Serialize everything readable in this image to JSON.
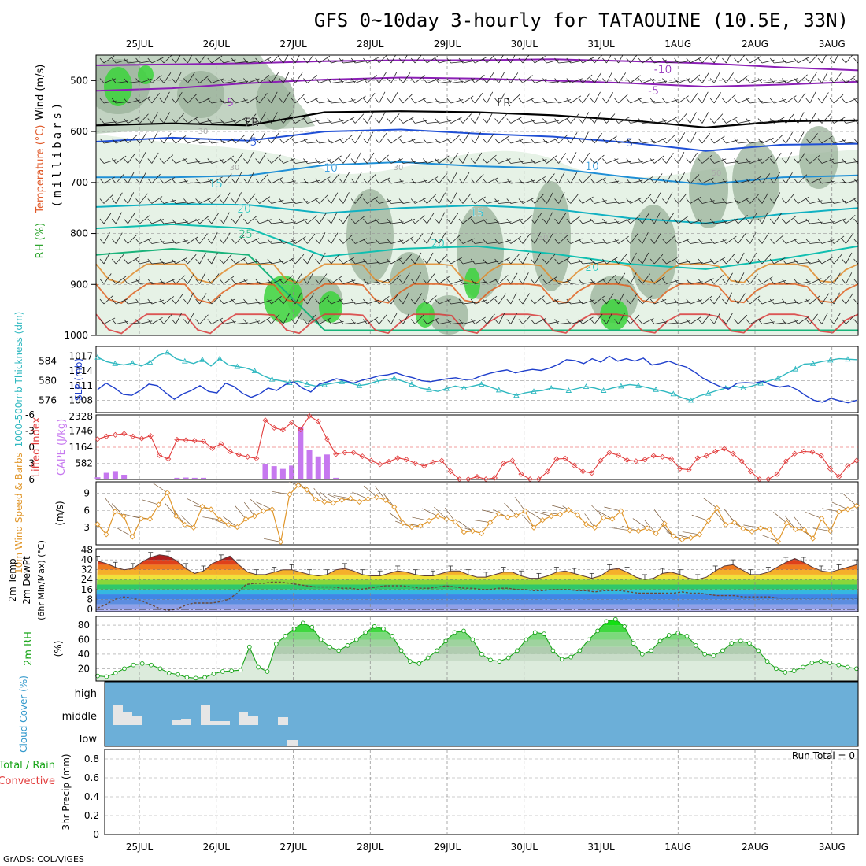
{
  "title": "GFS 0~10day 3-hourly for TATAOUINE (10.5E, 33N)",
  "credit": "GrADS: COLA/IGES",
  "colors": {
    "rh_light": "#e6f2e6",
    "rh_mid": "#c2d3c2",
    "rh_dark": "#9ab19a",
    "rh_green": "#3cd33c",
    "cloud_bg": "#6cafd8",
    "cloud_bar": "#e6e6e6",
    "cape": "#c678ef",
    "lifted": "#e23c3c",
    "slp": "#1f3fcc",
    "thickness": "#2fb8c0",
    "wind": "#e0962a",
    "rh2m": "#19a519"
  },
  "chart_data": [
    {
      "type": "contour",
      "panel": "upper-air",
      "ylabel_parts": [
        {
          "text": "RH (%)",
          "color": "#32b432"
        },
        {
          "text": "Temperature (°C)",
          "color": "#e05a2a"
        },
        {
          "text": "Wind (m/s)",
          "color": "#000000"
        }
      ],
      "ylabel2": "(millibars)",
      "yticks": [
        "500",
        "600",
        "700",
        "800",
        "900",
        "1000"
      ],
      "ylim": [
        1000,
        450
      ],
      "x_dates": [
        "25JUL",
        "26JUL",
        "27JUL",
        "28JUL",
        "29JUL",
        "30JUL",
        "31JUL",
        "1AUG",
        "2AUG",
        "3AUG"
      ],
      "contour_labels": [
        "-10",
        "-5",
        "-5",
        "FR",
        "FR",
        "5",
        "5",
        "10",
        "10",
        "15",
        "15",
        "20",
        "20",
        "20",
        "25",
        "30",
        "30",
        "30",
        "50",
        "50"
      ],
      "isotherms": [
        {
          "label": "-10",
          "p": [
            470,
            468,
            466,
            462,
            460,
            460,
            458,
            462,
            466,
            474,
            480
          ]
        },
        {
          "label": "-5",
          "p": [
            520,
            515,
            505,
            498,
            494,
            496,
            500,
            505,
            512,
            508,
            502
          ]
        },
        {
          "label": "FR",
          "p": [
            588,
            584,
            588,
            562,
            560,
            562,
            568,
            578,
            592,
            580,
            578
          ]
        },
        {
          "label": "5",
          "p": [
            620,
            612,
            618,
            600,
            596,
            604,
            610,
            622,
            638,
            626,
            624
          ]
        },
        {
          "label": "10",
          "p": [
            690,
            690,
            686,
            666,
            660,
            668,
            672,
            690,
            704,
            690,
            686
          ]
        },
        {
          "label": "15",
          "p": [
            748,
            742,
            744,
            760,
            750,
            745,
            752,
            770,
            780,
            762,
            750
          ]
        },
        {
          "label": "20",
          "p": [
            790,
            782,
            790,
            845,
            830,
            825,
            840,
            860,
            870,
            850,
            825
          ]
        },
        {
          "label": "25",
          "p": [
            842,
            830,
            842,
            990,
            990,
            990,
            990,
            990,
            990,
            990,
            990
          ]
        }
      ]
    },
    {
      "type": "line",
      "panel": "thickness-slp",
      "ylabel": "1000-500mb Thickness (dm)",
      "ylabel2": "SLP (mb)",
      "yticks_left": [
        "584",
        "580",
        "576"
      ],
      "yticks_right": [
        "1017",
        "1014",
        "1011",
        "1008"
      ],
      "series": [
        {
          "name": "Thickness",
          "axis": "left",
          "ylim": [
            573.5,
            587
          ],
          "values": [
            584.8,
            583.9,
            583.5,
            583.2,
            583.6,
            583.0,
            583.8,
            585.2,
            585.8,
            584.5,
            584.0,
            583.5,
            584.3,
            583.0,
            584.5,
            583.2,
            582.9,
            582.6,
            582.0,
            581.0,
            580.3,
            580.0,
            579.6,
            579.9,
            579.3,
            578.9,
            579.2,
            579.5,
            579.8,
            579.5,
            579.0,
            579.3,
            579.9,
            580.2,
            580.5,
            579.9,
            579.3,
            578.5,
            578.2,
            577.8,
            578.4,
            578.9,
            578.5,
            578.9,
            579.3,
            578.7,
            578.1,
            577.5,
            577.0,
            577.5,
            577.8,
            578.0,
            578.5,
            578.3,
            578.0,
            578.4,
            578.8,
            578.5,
            578.0,
            578.5,
            578.9,
            579.2,
            579.0,
            578.6,
            578.2,
            577.8,
            577.3,
            576.5,
            576.0,
            576.9,
            577.4,
            578.0,
            578.5,
            578.9,
            578.5,
            578.9,
            579.5,
            580.0,
            580.5,
            581.5,
            582.4,
            583.4,
            583.5,
            583.9,
            584.2,
            584.5,
            584.4,
            584.3
          ]
        },
        {
          "name": "SLP",
          "axis": "right",
          "ylim": [
            1005.5,
            1019
          ],
          "values": [
            1010.2,
            1011.5,
            1010.5,
            1009.2,
            1009.0,
            1010.0,
            1011.3,
            1011.0,
            1009.5,
            1008.2,
            1009.3,
            1010.0,
            1011.0,
            1009.8,
            1009.5,
            1011.5,
            1010.8,
            1009.4,
            1008.6,
            1009.3,
            1010.5,
            1010.0,
            1011.2,
            1011.8,
            1010.5,
            1009.7,
            1011.3,
            1011.8,
            1012.4,
            1012.0,
            1011.5,
            1012.1,
            1012.5,
            1013.0,
            1013.2,
            1013.6,
            1013.0,
            1012.6,
            1012.0,
            1011.8,
            1012.1,
            1012.4,
            1012.6,
            1012.2,
            1012.3,
            1013.0,
            1013.5,
            1013.9,
            1014.2,
            1013.6,
            1014.0,
            1014.3,
            1014.1,
            1014.6,
            1015.3,
            1016.3,
            1016.1,
            1015.5,
            1016.5,
            1015.8,
            1017.0,
            1016.0,
            1016.5,
            1016.0,
            1016.6,
            1015.2,
            1015.5,
            1016.0,
            1015.3,
            1014.8,
            1013.8,
            1012.5,
            1011.6,
            1010.8,
            1010.3,
            1011.5,
            1011.6,
            1011.5,
            1011.9,
            1011.1,
            1010.7,
            1011.0,
            1010.2,
            1009.0,
            1008.0,
            1007.6,
            1008.4,
            1007.9,
            1007.5,
            1008.0
          ]
        }
      ]
    },
    {
      "type": "bar+line",
      "panel": "cape-li",
      "ylabel": "Lifted Index",
      "ylabel2": "CAPE (J/kg)",
      "yticks_left": [
        "-6",
        "-3",
        "0",
        "3",
        "6"
      ],
      "yticks_right": [
        "2328",
        "1746",
        "1164",
        "582"
      ],
      "li_ylim": [
        6,
        -6
      ],
      "cape_ylim": [
        0,
        2328
      ],
      "lifted_index": [
        -1.5,
        -2.0,
        -2.3,
        -2.5,
        -2.0,
        -1.6,
        -2.1,
        1.5,
        2.2,
        -1.4,
        -1.3,
        -1.2,
        -1.1,
        0.2,
        -0.6,
        0.8,
        1.4,
        1.8,
        2.1,
        -5.0,
        -3.6,
        -3.2,
        -4.6,
        -3.3,
        -5.8,
        -4.8,
        -1.5,
        1.3,
        1.0,
        1.0,
        1.7,
        2.5,
        3.2,
        2.7,
        2.0,
        2.3,
        3.0,
        3.5,
        2.8,
        2.5,
        4.5,
        6.0,
        6.0,
        5.5,
        6.0,
        5.7,
        3.0,
        2.5,
        5.0,
        6.0,
        6.0,
        4.5,
        2.2,
        2.1,
        3.4,
        4.5,
        4.8,
        2.5,
        1.0,
        1.5,
        2.4,
        2.6,
        2.3,
        1.6,
        1.8,
        2.2,
        4.0,
        4.2,
        2.0,
        1.6,
        0.8,
        0.3,
        1.2,
        2.6,
        4.5,
        6.0,
        6.0,
        5.0,
        2.6,
        1.2,
        0.8,
        0.9,
        1.6,
        4.0,
        5.5,
        3.5,
        2.5
      ],
      "cape": [
        80,
        240,
        300,
        170,
        0,
        0,
        0,
        0,
        0,
        60,
        70,
        60,
        60,
        0,
        0,
        0,
        0,
        0,
        0,
        550,
        480,
        380,
        500,
        1880,
        1060,
        830,
        900,
        60,
        0,
        0,
        0,
        0,
        0,
        0,
        0,
        0,
        0,
        0,
        0,
        0,
        0,
        0,
        0,
        0,
        0,
        0,
        0,
        0,
        0,
        0,
        0,
        0,
        0,
        0,
        0,
        0,
        0,
        0,
        0,
        0,
        0,
        0,
        0,
        0,
        0,
        0,
        0,
        0,
        0,
        0,
        0,
        0,
        0,
        0,
        0,
        0,
        0,
        0,
        0,
        0,
        0,
        0,
        0,
        0,
        0,
        0,
        0
      ]
    },
    {
      "type": "line",
      "panel": "wind10m",
      "ylabel": "10m Wind Speed & Barbs",
      "ylabel2": "(m/s)",
      "yticks": [
        "9",
        "6",
        "3"
      ],
      "ylim": [
        0,
        11
      ],
      "values": [
        3.6,
        1.8,
        5.8,
        5.0,
        1.4,
        4.6,
        4.5,
        7.0,
        9.1,
        5.0,
        3.5,
        3.0,
        6.7,
        6.2,
        4.4,
        3.5,
        3.1,
        4.5,
        5.0,
        5.9,
        6.2,
        0.5,
        8.8,
        10.4,
        9.6,
        7.9,
        7.5,
        7.3,
        7.8,
        8.1,
        7.5,
        8.0,
        8.3,
        7.8,
        6.6,
        3.8,
        3.1,
        3.3,
        4.2,
        5.0,
        4.5,
        4.0,
        2.2,
        2.4,
        2.0,
        3.9,
        5.4,
        4.8,
        5.1,
        5.9,
        3.0,
        4.3,
        5.0,
        5.3,
        6.1,
        5.2,
        3.6,
        3.0,
        4.7,
        4.5,
        5.9,
        2.5,
        2.4,
        2.9,
        2.0,
        3.7,
        1.5,
        0.9,
        1.2,
        1.8,
        4.2,
        6.4,
        3.5,
        3.9,
        2.8,
        2.3,
        2.9,
        2.7,
        0.6,
        3.8,
        2.7,
        2.6,
        1.1,
        4.6,
        2.4,
        5.8,
        6.2,
        6.8
      ]
    },
    {
      "type": "area+line",
      "panel": "temperature",
      "ylabel": "2m Temp",
      "ylabel2": "2m DewPt",
      "ylabel3": "(6hr Min/Max) (°C)",
      "yticks": [
        "48",
        "40",
        "32",
        "24",
        "16",
        "8",
        "0"
      ],
      "ylim": [
        -2,
        49
      ],
      "temperature": [
        39,
        37,
        34,
        32,
        33,
        38,
        42,
        44,
        43,
        39,
        33,
        29,
        31,
        37,
        40,
        43,
        36,
        30,
        28,
        28,
        30,
        32,
        32,
        30,
        28,
        27,
        28,
        32,
        33,
        31,
        28,
        27,
        27,
        29,
        31,
        30,
        28,
        27,
        27,
        29,
        31,
        31,
        28,
        26,
        26,
        28,
        30,
        30,
        27,
        25,
        25,
        27,
        30,
        31,
        29,
        27,
        25,
        27,
        32,
        33,
        30,
        26,
        24,
        25,
        29,
        30,
        28,
        25,
        24,
        26,
        31,
        35,
        36,
        32,
        28,
        28,
        30,
        34,
        38,
        41,
        38,
        34,
        31,
        30,
        32,
        34,
        36
      ],
      "dewpoint": [
        1,
        4,
        8,
        10,
        9,
        7,
        4,
        1,
        -1,
        0,
        3,
        5,
        5,
        5,
        6,
        8,
        13,
        20,
        21,
        21,
        22,
        22,
        21,
        20,
        19,
        18,
        18,
        18,
        17,
        17,
        16,
        17,
        18,
        19,
        19,
        19,
        18,
        17,
        17,
        18,
        19,
        18,
        17,
        17,
        16,
        16,
        17,
        17,
        16,
        16,
        15,
        15,
        16,
        16,
        16,
        15,
        15,
        14,
        15,
        15,
        15,
        14,
        13,
        13,
        13,
        13,
        13,
        14,
        13,
        13,
        12,
        11,
        11,
        11,
        10,
        10,
        10,
        10,
        9,
        9,
        9,
        9,
        9,
        9,
        9,
        9,
        9,
        9
      ]
    },
    {
      "type": "area",
      "panel": "rh2m",
      "ylabel": "2m RH",
      "ylabel2": "(%)",
      "yticks": [
        "80",
        "60",
        "40",
        "20"
      ],
      "ylim": [
        3,
        92
      ],
      "values": [
        10,
        9,
        14,
        20,
        25,
        27,
        25,
        20,
        14,
        12,
        8,
        7,
        8,
        13,
        16,
        17,
        18,
        50,
        22,
        16,
        54,
        65,
        75,
        83,
        77,
        60,
        50,
        45,
        52,
        60,
        70,
        78,
        75,
        65,
        45,
        30,
        27,
        35,
        45,
        58,
        70,
        72,
        60,
        40,
        32,
        30,
        35,
        45,
        60,
        70,
        68,
        45,
        33,
        36,
        45,
        60,
        72,
        85,
        88,
        78,
        55,
        40,
        45,
        58,
        66,
        69,
        65,
        52,
        40,
        38,
        45,
        55,
        58,
        55,
        45,
        30,
        20,
        15,
        17,
        22,
        28,
        30,
        28,
        25,
        22,
        20
      ]
    },
    {
      "type": "bar",
      "panel": "cloud",
      "ylabel": "Cloud Cover (%)",
      "yticks": [
        "high",
        "middle",
        "low"
      ]
    },
    {
      "type": "bar",
      "panel": "precip",
      "ylabel": "3hr Precip (mm)",
      "legend_total": "Total / Rain",
      "legend_conv": "Convective",
      "run_total": "Run Total = 0",
      "yticks": [
        "0.8",
        "0.6",
        "0.4",
        "0.2",
        "0"
      ],
      "ylim": [
        0,
        0.9
      ]
    }
  ]
}
